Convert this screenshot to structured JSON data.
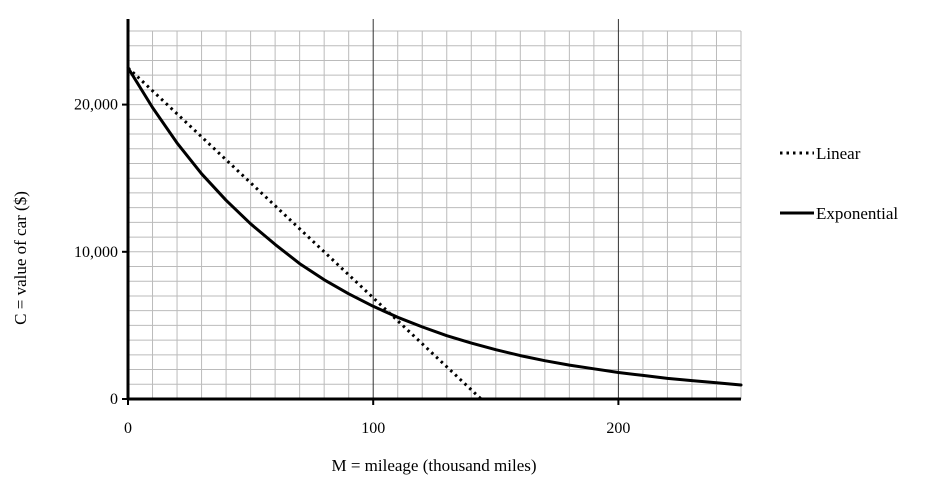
{
  "chart_data": {
    "type": "line",
    "title": "",
    "xlabel": "M = mileage (thousand miles)",
    "ylabel": "C = value of car ($)",
    "xlim": [
      0,
      250
    ],
    "ylim": [
      0,
      25000
    ],
    "grid": true,
    "x_ticks": [
      {
        "value": 0,
        "label": "0"
      },
      {
        "value": 100,
        "label": "100"
      },
      {
        "value": 200,
        "label": "200"
      }
    ],
    "y_ticks": [
      {
        "value": 0,
        "label": "0"
      },
      {
        "value": 10000,
        "label": "10,000"
      },
      {
        "value": 20000,
        "label": "20,000"
      }
    ],
    "legend_position": "right",
    "series": [
      {
        "name": "Linear",
        "style": "dotted",
        "color": "#000000",
        "x": [
          0,
          144
        ],
        "y": [
          22500,
          0
        ]
      },
      {
        "name": "Exponential",
        "style": "solid",
        "color": "#000000",
        "x": [
          0,
          10,
          20,
          30,
          40,
          50,
          60,
          70,
          80,
          90,
          100,
          110,
          120,
          130,
          140,
          150,
          160,
          170,
          180,
          190,
          200,
          210,
          220,
          230,
          240,
          250
        ],
        "y": [
          22500,
          19800,
          17400,
          15300,
          13500,
          11900,
          10500,
          9200,
          8100,
          7150,
          6300,
          5550,
          4900,
          4300,
          3800,
          3350,
          2950,
          2600,
          2300,
          2050,
          1800,
          1600,
          1400,
          1250,
          1100,
          950
        ]
      }
    ]
  }
}
